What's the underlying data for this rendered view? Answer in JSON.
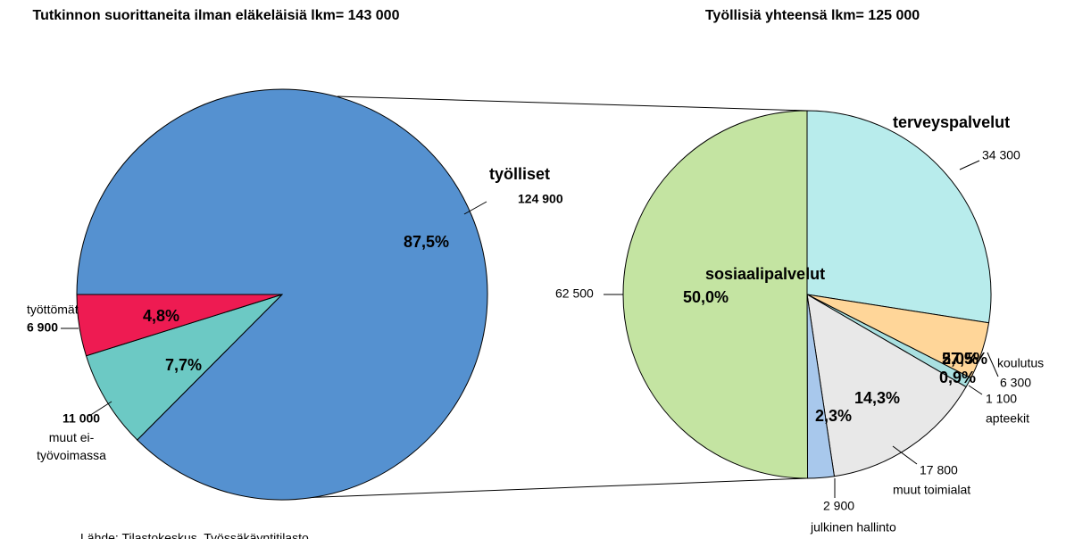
{
  "chart_data": [
    {
      "type": "pie",
      "title": "Tutkinnon suorittaneita ilman eläkeläisiä lkm= 143 000",
      "categories": [
        "työlliset",
        "muut ei-työvoimassa",
        "työttömät"
      ],
      "values": [
        124900,
        11000,
        6900
      ],
      "value_labels": [
        "124 900",
        "11 000",
        "6 900"
      ],
      "percents": [
        87.5,
        7.7,
        4.8
      ],
      "percent_labels": [
        "87,5%",
        "7,7%",
        "4,8%"
      ],
      "colors": [
        "#5591d0",
        "#6cc9c4",
        "#ee1b52"
      ]
    },
    {
      "type": "pie",
      "title": "Työllisiä yhteensä lkm= 125 000",
      "categories": [
        "terveyspalvelut",
        "koulutus",
        "apteekit",
        "muut toimialat",
        "julkinen hallinto",
        "sosiaalipalvelut"
      ],
      "values": [
        34300,
        6300,
        1100,
        17800,
        2900,
        62500
      ],
      "value_labels": [
        "34 300",
        "6 300",
        "1 100",
        "17 800",
        "2 900",
        "62 500"
      ],
      "percents": [
        27.5,
        5.0,
        0.9,
        14.3,
        2.3,
        50.0
      ],
      "percent_labels": [
        "27,5%",
        "5,0%",
        "0,9%",
        "14,3%",
        "2,3%",
        "50,0%"
      ],
      "colors": [
        "#b8ecec",
        "#ffd699",
        "#a9e0e0",
        "#e8e8e8",
        "#a8c8ec",
        "#c4e4a2"
      ]
    }
  ],
  "source": "Lähde: Tilastokeskus, Työssäkäyntitilasto"
}
